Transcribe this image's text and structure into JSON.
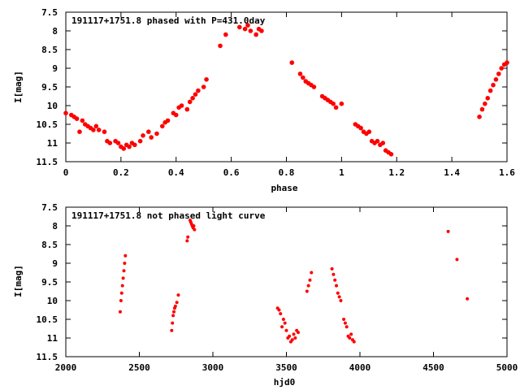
{
  "chart_data": [
    {
      "type": "scatter",
      "title": "191117+1751.8 phased with P=431.0day",
      "xlabel": "phase",
      "ylabel": "I[mag]",
      "xlim": [
        0,
        1.6
      ],
      "ylim": [
        11.5,
        7.5
      ],
      "y_inverted": true,
      "xticks": [
        "0",
        "0.2",
        "0.4",
        "0.6",
        "0.8",
        "1",
        "1.2",
        "1.4",
        "1.6"
      ],
      "yticks": [
        "7.5",
        "8",
        "8.5",
        "9",
        "9.5",
        "10",
        "10.5",
        "11",
        "11.5"
      ],
      "grid": false,
      "marker_color": "#ff0000",
      "series": [
        {
          "x": [
            0.0,
            0.02,
            0.03,
            0.04,
            0.05,
            0.06,
            0.07,
            0.08,
            0.09,
            0.1,
            0.11,
            0.12,
            0.14,
            0.15,
            0.16,
            0.18,
            0.19,
            0.2,
            0.21,
            0.22,
            0.23,
            0.24,
            0.25,
            0.27,
            0.28,
            0.3,
            0.31,
            0.33,
            0.35,
            0.36,
            0.37,
            0.39,
            0.4,
            0.41,
            0.42,
            0.44,
            0.45,
            0.46,
            0.47,
            0.48,
            0.5,
            0.51,
            0.56,
            0.58,
            0.63,
            0.65,
            0.66,
            0.67,
            0.69,
            0.7,
            0.71,
            0.82,
            0.85,
            0.86,
            0.87,
            0.88,
            0.89,
            0.9,
            0.93,
            0.94,
            0.95,
            0.96,
            0.97,
            0.98,
            1.0,
            1.05,
            1.06,
            1.07,
            1.08,
            1.09,
            1.1,
            1.11,
            1.12,
            1.13,
            1.14,
            1.15,
            1.16,
            1.17,
            1.18,
            1.5,
            1.51,
            1.52,
            1.53,
            1.54,
            1.55,
            1.56,
            1.57,
            1.58,
            1.59,
            1.6
          ],
          "y": [
            10.2,
            10.25,
            10.3,
            10.35,
            10.7,
            10.4,
            10.5,
            10.55,
            10.6,
            10.65,
            10.55,
            10.65,
            10.7,
            10.95,
            11.0,
            10.95,
            11.0,
            11.1,
            11.15,
            11.05,
            11.1,
            11.0,
            11.05,
            10.95,
            10.8,
            10.7,
            10.85,
            10.75,
            10.55,
            10.45,
            10.4,
            10.2,
            10.25,
            10.05,
            10.0,
            10.1,
            9.9,
            9.8,
            9.7,
            9.6,
            9.5,
            9.3,
            8.4,
            8.1,
            7.9,
            7.95,
            7.85,
            8.0,
            8.1,
            7.95,
            8.0,
            8.85,
            9.15,
            9.25,
            9.35,
            9.4,
            9.45,
            9.5,
            9.75,
            9.8,
            9.85,
            9.9,
            9.95,
            10.05,
            9.95,
            10.5,
            10.55,
            10.6,
            10.7,
            10.75,
            10.7,
            10.95,
            11.0,
            10.95,
            11.05,
            11.0,
            11.2,
            11.25,
            11.3,
            10.3,
            10.1,
            9.95,
            9.8,
            9.6,
            9.45,
            9.3,
            9.15,
            9.0,
            8.9,
            8.85
          ]
        }
      ]
    },
    {
      "type": "scatter",
      "title": "191117+1751.8 not phased light curve",
      "xlabel": "hjd0",
      "ylabel": "I[mag]",
      "xlim": [
        2000,
        5000
      ],
      "ylim": [
        11.5,
        7.5
      ],
      "y_inverted": true,
      "xticks": [
        "2000",
        "2500",
        "3000",
        "3500",
        "4000",
        "4500",
        "5000"
      ],
      "yticks": [
        "7.5",
        "8",
        "8.5",
        "9",
        "9.5",
        "10",
        "10.5",
        "11",
        "11.5"
      ],
      "grid": false,
      "marker_color": "#ff0000",
      "series": [
        {
          "x": [
            2370,
            2375,
            2380,
            2385,
            2390,
            2395,
            2400,
            2405,
            2720,
            2725,
            2730,
            2735,
            2740,
            2745,
            2755,
            2765,
            2825,
            2830,
            2845,
            2850,
            2855,
            2860,
            2865,
            2870,
            2875,
            3440,
            3450,
            3460,
            3470,
            3480,
            3490,
            3500,
            3510,
            3520,
            3530,
            3540,
            3550,
            3560,
            3570,
            3580,
            3640,
            3650,
            3660,
            3670,
            3810,
            3820,
            3830,
            3840,
            3850,
            3860,
            3870,
            3890,
            3900,
            3910,
            3920,
            3930,
            3940,
            3950,
            3960,
            4600,
            4660,
            4730
          ],
          "y": [
            10.3,
            10.0,
            9.8,
            9.6,
            9.4,
            9.2,
            9.0,
            8.8,
            10.8,
            10.6,
            10.4,
            10.3,
            10.2,
            10.15,
            10.05,
            9.85,
            8.4,
            8.3,
            7.85,
            7.9,
            7.95,
            8.0,
            8.05,
            8.0,
            8.1,
            10.2,
            10.25,
            10.35,
            10.7,
            10.5,
            10.6,
            10.8,
            11.0,
            10.95,
            11.1,
            11.05,
            10.9,
            11.0,
            10.8,
            10.85,
            9.75,
            9.6,
            9.45,
            9.25,
            9.15,
            9.3,
            9.45,
            9.6,
            9.8,
            9.9,
            10.0,
            10.5,
            10.6,
            10.7,
            10.95,
            11.0,
            10.9,
            11.05,
            11.1,
            8.15,
            8.9,
            9.95
          ]
        }
      ]
    }
  ]
}
